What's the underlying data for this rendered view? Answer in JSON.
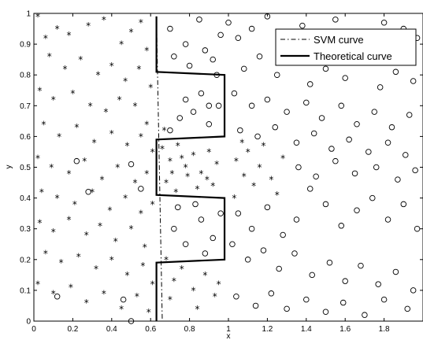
{
  "chart_data": {
    "type": "scatter",
    "title": "",
    "xlabel": "x",
    "ylabel": "y",
    "xlim": [
      0,
      2
    ],
    "ylim": [
      0,
      1
    ],
    "grid": false,
    "legend_position": "top-right",
    "x_ticks": [
      "0",
      "0.2",
      "0.4",
      "0.6",
      "0.8",
      "1",
      "1.2",
      "1.4",
      "1.6",
      "1.8"
    ],
    "x_tick_values": [
      0,
      0.2,
      0.4,
      0.6,
      0.8,
      1.0,
      1.2,
      1.4,
      1.6,
      1.8
    ],
    "y_ticks": [
      "0",
      "0.1",
      "0.2",
      "0.3",
      "0.4",
      "0.5",
      "0.6",
      "0.7",
      "0.8",
      "0.9",
      "1"
    ],
    "y_tick_values": [
      0,
      0.1,
      0.2,
      0.3,
      0.4,
      0.5,
      0.6,
      0.7,
      0.8,
      0.9,
      1.0
    ],
    "lines": [
      {
        "name": "SVM curve",
        "style": "dash-dot",
        "x": [
          0.63,
          0.64,
          0.65,
          0.66
        ],
        "y": [
          0.99,
          0.66,
          0.33,
          0.0
        ]
      },
      {
        "name": "Theoretical curve",
        "style": "solid",
        "x": [
          0.63,
          0.63,
          0.98,
          0.98,
          0.63,
          0.63,
          0.98,
          0.98,
          0.63,
          0.63
        ],
        "y": [
          0.99,
          0.81,
          0.8,
          0.6,
          0.59,
          0.41,
          0.4,
          0.2,
          0.19,
          0.0
        ]
      }
    ],
    "series": [
      {
        "marker": "asterisk",
        "points": [
          [
            0.02,
            0.99
          ],
          [
            0.06,
            0.92
          ],
          [
            0.12,
            0.95
          ],
          [
            0.18,
            0.93
          ],
          [
            0.28,
            0.96
          ],
          [
            0.36,
            0.98
          ],
          [
            0.45,
            0.9
          ],
          [
            0.5,
            0.94
          ],
          [
            0.55,
            0.97
          ],
          [
            0.58,
            0.88
          ],
          [
            0.08,
            0.86
          ],
          [
            0.16,
            0.82
          ],
          [
            0.24,
            0.85
          ],
          [
            0.33,
            0.8
          ],
          [
            0.4,
            0.83
          ],
          [
            0.47,
            0.78
          ],
          [
            0.54,
            0.82
          ],
          [
            0.6,
            0.76
          ],
          [
            0.03,
            0.75
          ],
          [
            0.1,
            0.72
          ],
          [
            0.2,
            0.74
          ],
          [
            0.29,
            0.7
          ],
          [
            0.37,
            0.68
          ],
          [
            0.44,
            0.72
          ],
          [
            0.52,
            0.7
          ],
          [
            0.58,
            0.64
          ],
          [
            0.05,
            0.64
          ],
          [
            0.13,
            0.6
          ],
          [
            0.22,
            0.63
          ],
          [
            0.31,
            0.58
          ],
          [
            0.4,
            0.61
          ],
          [
            0.48,
            0.57
          ],
          [
            0.55,
            0.6
          ],
          [
            0.61,
            0.55
          ],
          [
            0.02,
            0.53
          ],
          [
            0.09,
            0.5
          ],
          [
            0.18,
            0.48
          ],
          [
            0.26,
            0.52
          ],
          [
            0.35,
            0.46
          ],
          [
            0.43,
            0.5
          ],
          [
            0.52,
            0.45
          ],
          [
            0.58,
            0.48
          ],
          [
            0.04,
            0.42
          ],
          [
            0.12,
            0.4
          ],
          [
            0.21,
            0.38
          ],
          [
            0.3,
            0.42
          ],
          [
            0.39,
            0.36
          ],
          [
            0.47,
            0.4
          ],
          [
            0.55,
            0.35
          ],
          [
            0.61,
            0.38
          ],
          [
            0.03,
            0.32
          ],
          [
            0.1,
            0.29
          ],
          [
            0.18,
            0.33
          ],
          [
            0.27,
            0.28
          ],
          [
            0.34,
            0.31
          ],
          [
            0.42,
            0.26
          ],
          [
            0.5,
            0.3
          ],
          [
            0.57,
            0.24
          ],
          [
            0.06,
            0.22
          ],
          [
            0.14,
            0.19
          ],
          [
            0.23,
            0.21
          ],
          [
            0.32,
            0.17
          ],
          [
            0.4,
            0.2
          ],
          [
            0.48,
            0.15
          ],
          [
            0.56,
            0.18
          ],
          [
            0.61,
            0.12
          ],
          [
            0.02,
            0.12
          ],
          [
            0.1,
            0.09
          ],
          [
            0.19,
            0.11
          ],
          [
            0.27,
            0.06
          ],
          [
            0.36,
            0.09
          ],
          [
            0.45,
            0.04
          ],
          [
            0.53,
            0.08
          ],
          [
            0.59,
            0.03
          ],
          [
            0.68,
            0.2
          ],
          [
            0.72,
            0.13
          ],
          [
            0.76,
            0.17
          ],
          [
            0.82,
            0.1
          ],
          [
            0.88,
            0.15
          ],
          [
            0.93,
            0.08
          ],
          [
            0.7,
            0.07
          ],
          [
            0.84,
            0.04
          ],
          [
            0.95,
            0.12
          ],
          [
            0.66,
            0.56
          ],
          [
            0.7,
            0.52
          ],
          [
            0.74,
            0.57
          ],
          [
            0.78,
            0.5
          ],
          [
            0.82,
            0.54
          ],
          [
            0.86,
            0.48
          ],
          [
            0.9,
            0.55
          ],
          [
            0.94,
            0.51
          ],
          [
            0.68,
            0.45
          ],
          [
            0.73,
            0.42
          ],
          [
            0.79,
            0.47
          ],
          [
            0.84,
            0.43
          ],
          [
            0.89,
            0.46
          ],
          [
            0.76,
            0.53
          ],
          [
            0.92,
            0.44
          ],
          [
            0.71,
            0.48
          ],
          [
            1.04,
            0.52
          ],
          [
            1.08,
            0.47
          ],
          [
            1.13,
            0.44
          ],
          [
            1.03,
            0.4
          ],
          [
            1.1,
            0.55
          ],
          [
            1.16,
            0.5
          ],
          [
            1.22,
            0.46
          ],
          [
            1.28,
            0.53
          ],
          [
            1.25,
            0.41
          ],
          [
            1.07,
            0.58
          ],
          [
            1.18,
            0.57
          ],
          [
            0.67,
            0.62
          ]
        ]
      },
      {
        "marker": "circle",
        "points": [
          [
            1.0,
            0.97
          ],
          [
            1.05,
            0.92
          ],
          [
            1.12,
            0.95
          ],
          [
            1.2,
            0.99
          ],
          [
            1.3,
            0.93
          ],
          [
            1.38,
            0.96
          ],
          [
            1.45,
            0.9
          ],
          [
            1.55,
            0.98
          ],
          [
            1.62,
            0.94
          ],
          [
            1.7,
            0.91
          ],
          [
            1.8,
            0.97
          ],
          [
            1.9,
            0.95
          ],
          [
            1.97,
            0.92
          ],
          [
            0.7,
            0.95
          ],
          [
            0.78,
            0.9
          ],
          [
            0.85,
            0.98
          ],
          [
            0.92,
            0.85
          ],
          [
            0.96,
            0.93
          ],
          [
            1.08,
            0.82
          ],
          [
            1.16,
            0.86
          ],
          [
            1.25,
            0.8
          ],
          [
            1.33,
            0.84
          ],
          [
            1.42,
            0.77
          ],
          [
            1.5,
            0.82
          ],
          [
            1.6,
            0.79
          ],
          [
            1.68,
            0.84
          ],
          [
            1.78,
            0.76
          ],
          [
            1.86,
            0.81
          ],
          [
            1.95,
            0.78
          ],
          [
            1.03,
            0.74
          ],
          [
            1.12,
            0.7
          ],
          [
            1.2,
            0.72
          ],
          [
            1.3,
            0.68
          ],
          [
            1.4,
            0.71
          ],
          [
            1.48,
            0.66
          ],
          [
            1.58,
            0.7
          ],
          [
            1.66,
            0.64
          ],
          [
            1.75,
            0.68
          ],
          [
            1.84,
            0.63
          ],
          [
            1.93,
            0.67
          ],
          [
            1.06,
            0.62
          ],
          [
            1.15,
            0.6
          ],
          [
            1.24,
            0.63
          ],
          [
            1.35,
            0.58
          ],
          [
            1.44,
            0.61
          ],
          [
            1.53,
            0.56
          ],
          [
            1.62,
            0.59
          ],
          [
            1.72,
            0.55
          ],
          [
            1.82,
            0.58
          ],
          [
            1.91,
            0.54
          ],
          [
            1.36,
            0.5
          ],
          [
            1.45,
            0.47
          ],
          [
            1.55,
            0.52
          ],
          [
            1.65,
            0.48
          ],
          [
            1.76,
            0.5
          ],
          [
            1.87,
            0.46
          ],
          [
            1.96,
            0.49
          ],
          [
            1.05,
            0.35
          ],
          [
            1.12,
            0.3
          ],
          [
            1.2,
            0.37
          ],
          [
            1.28,
            0.28
          ],
          [
            1.35,
            0.33
          ],
          [
            1.42,
            0.43
          ],
          [
            1.5,
            0.38
          ],
          [
            1.58,
            0.31
          ],
          [
            1.66,
            0.36
          ],
          [
            1.74,
            0.4
          ],
          [
            1.82,
            0.33
          ],
          [
            1.9,
            0.38
          ],
          [
            1.97,
            0.3
          ],
          [
            1.02,
            0.25
          ],
          [
            1.1,
            0.2
          ],
          [
            1.18,
            0.23
          ],
          [
            1.26,
            0.17
          ],
          [
            1.34,
            0.22
          ],
          [
            1.43,
            0.15
          ],
          [
            1.52,
            0.19
          ],
          [
            1.6,
            0.13
          ],
          [
            1.68,
            0.18
          ],
          [
            1.77,
            0.12
          ],
          [
            1.86,
            0.16
          ],
          [
            1.95,
            0.1
          ],
          [
            1.04,
            0.08
          ],
          [
            1.14,
            0.05
          ],
          [
            1.22,
            0.09
          ],
          [
            1.3,
            0.04
          ],
          [
            1.4,
            0.07
          ],
          [
            1.5,
            0.03
          ],
          [
            1.59,
            0.06
          ],
          [
            1.7,
            0.02
          ],
          [
            1.8,
            0.07
          ],
          [
            1.92,
            0.04
          ],
          [
            0.22,
            0.52
          ],
          [
            0.28,
            0.42
          ],
          [
            0.5,
            0.51
          ],
          [
            0.55,
            0.43
          ],
          [
            0.12,
            0.08
          ],
          [
            0.46,
            0.07
          ],
          [
            0.5,
            0.0
          ],
          [
            0.72,
            0.3
          ],
          [
            0.78,
            0.25
          ],
          [
            0.86,
            0.33
          ],
          [
            0.92,
            0.27
          ],
          [
            0.96,
            0.35
          ],
          [
            0.74,
            0.37
          ],
          [
            0.83,
            0.38
          ],
          [
            0.88,
            0.22
          ],
          [
            0.7,
            0.62
          ],
          [
            0.75,
            0.66
          ],
          [
            0.82,
            0.68
          ],
          [
            0.9,
            0.64
          ],
          [
            0.95,
            0.7
          ],
          [
            0.78,
            0.72
          ],
          [
            0.86,
            0.74
          ],
          [
            0.72,
            0.86
          ],
          [
            0.8,
            0.83
          ],
          [
            0.88,
            0.88
          ],
          [
            0.9,
            0.7
          ],
          [
            0.94,
            0.8
          ]
        ]
      }
    ]
  },
  "legend": {
    "svm_label": "SVM curve",
    "theoretical_label": "Theoretical curve"
  }
}
